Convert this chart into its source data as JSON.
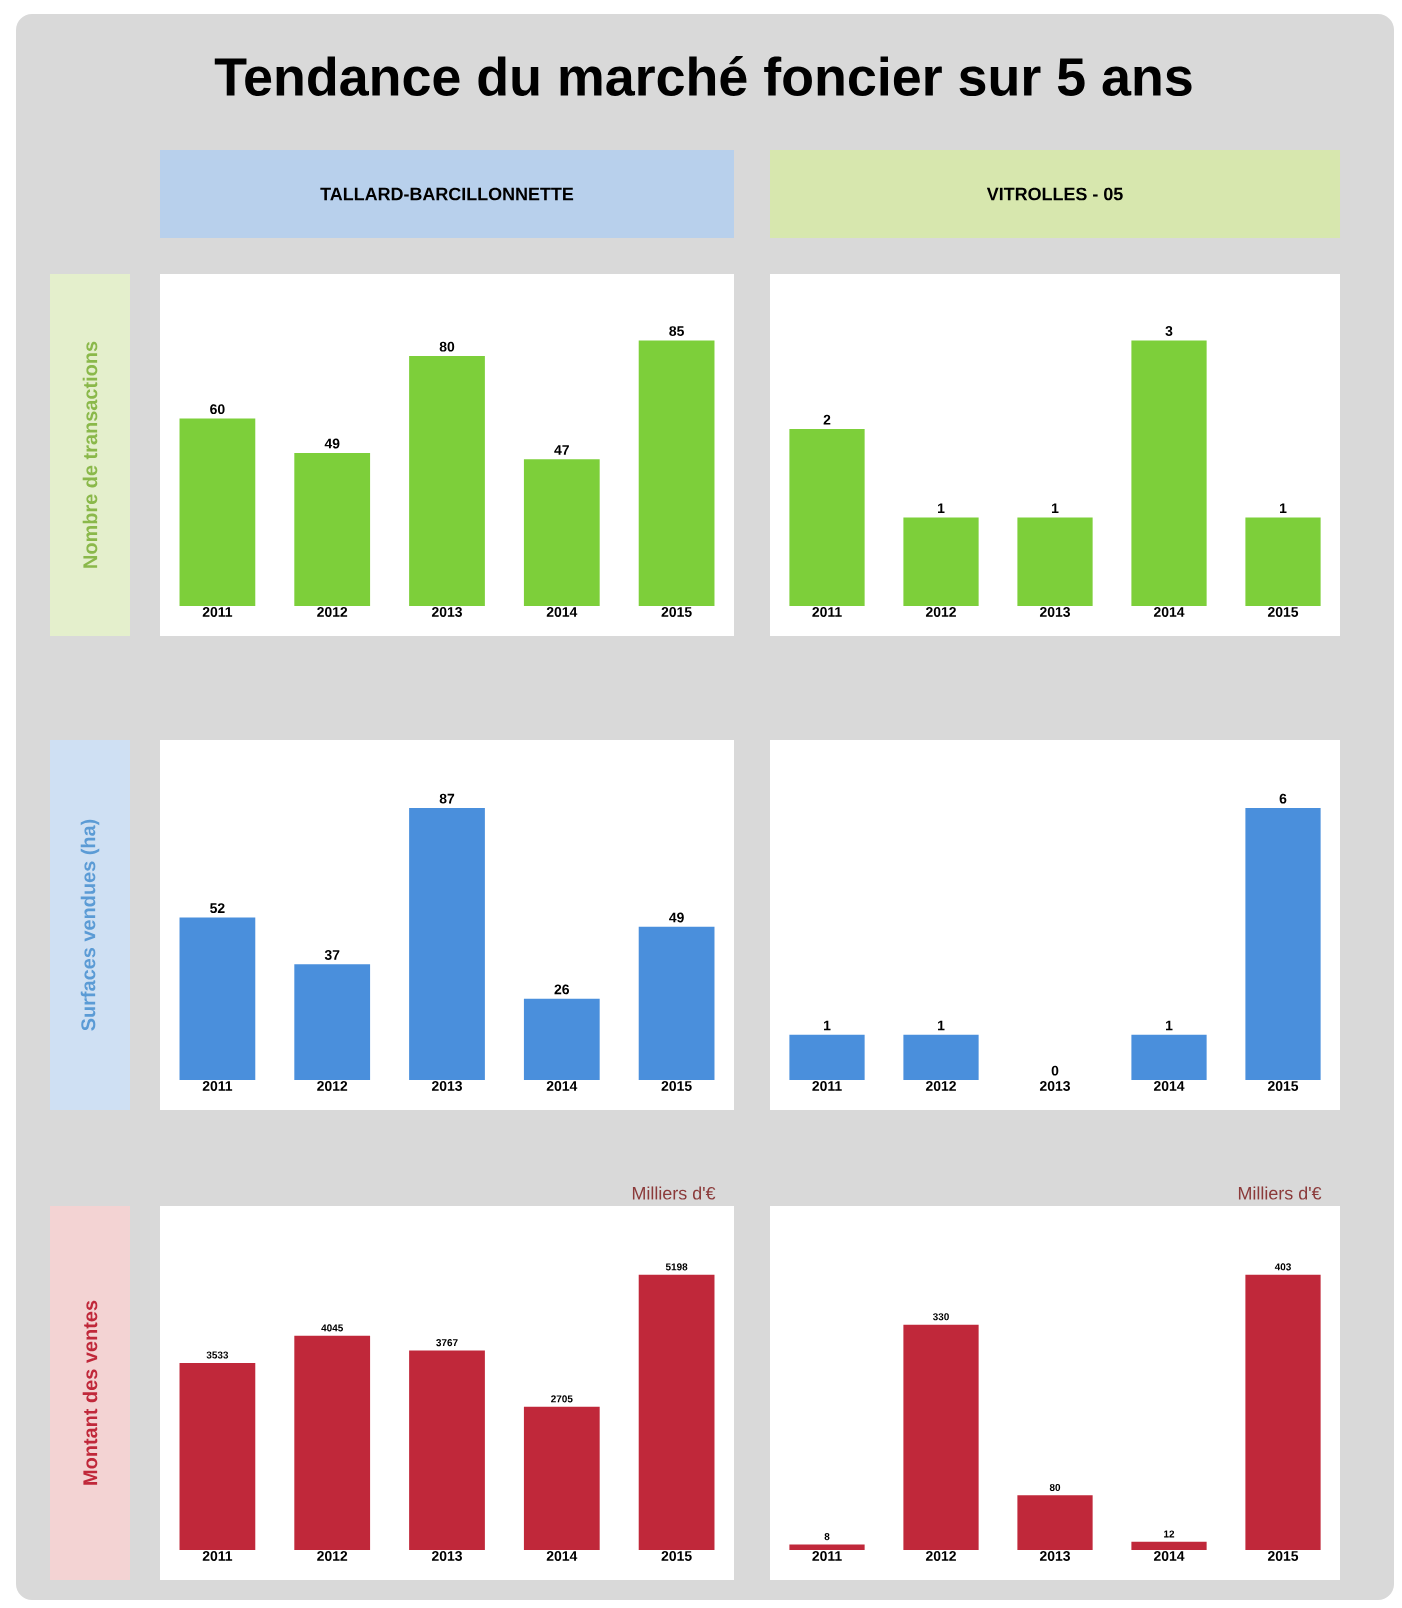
{
  "chart_data": [
    {
      "type": "other",
      "title": "Tendance du marché foncier sur 5 ans"
    },
    {
      "type": "bar",
      "title": "TALLARD-BARCILLONNETTE",
      "ylabel": "Nombre de transactions",
      "categories": [
        "2011",
        "2012",
        "2013",
        "2014",
        "2015"
      ],
      "values": [
        60,
        49,
        80,
        47,
        85
      ],
      "color": "#7dcf3a",
      "data_labels": true
    },
    {
      "type": "bar",
      "title": "VITROLLES - 05",
      "categories": [
        "2011",
        "2012",
        "2013",
        "2014",
        "2015"
      ],
      "values": [
        2,
        1,
        1,
        3,
        1
      ],
      "color": "#7dcf3a",
      "data_labels": true
    },
    {
      "type": "bar",
      "ylabel": "Surfaces vendues (ha)",
      "categories": [
        "2011",
        "2012",
        "2013",
        "2014",
        "2015"
      ],
      "values": [
        52,
        37,
        87,
        26,
        49
      ],
      "color": "#4a8fdc",
      "data_labels": true
    },
    {
      "type": "bar",
      "categories": [
        "2011",
        "2012",
        "2013",
        "2014",
        "2015"
      ],
      "values": [
        1,
        1,
        0,
        1,
        6
      ],
      "color": "#4a8fdc",
      "data_labels": true
    },
    {
      "type": "bar",
      "ylabel": "Montant des ventes",
      "annotations": [
        "Milliers d'€"
      ],
      "categories": [
        "2011",
        "2012",
        "2013",
        "2014",
        "2015"
      ],
      "values": [
        3533,
        4045,
        3767,
        2705,
        5198
      ],
      "color": "#c0283a",
      "data_labels": true
    },
    {
      "type": "bar",
      "annotations": [
        "Milliers d'€"
      ],
      "categories": [
        "2011",
        "2012",
        "2013",
        "2014",
        "2015"
      ],
      "values": [
        8,
        330,
        80,
        12,
        403
      ],
      "color": "#c0283a",
      "data_labels": true
    }
  ]
}
